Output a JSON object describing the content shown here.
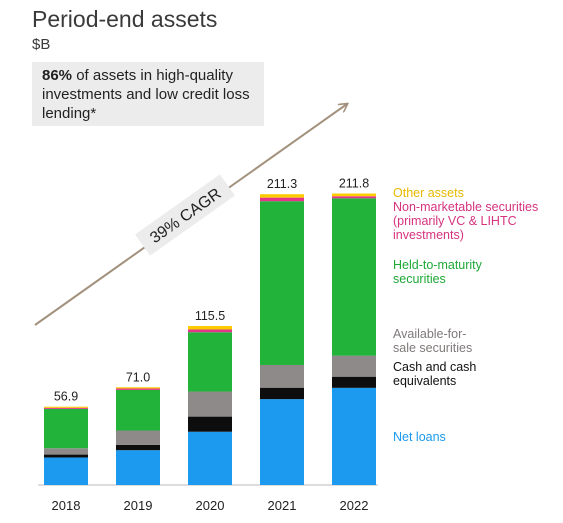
{
  "header": {
    "title": "Period-end assets",
    "unit": "$B"
  },
  "callout": {
    "highlight": "86%",
    "text": " of assets in high-quality investments and low credit loss lending*"
  },
  "cagr_label": "39% CAGR",
  "chart_data": {
    "type": "bar",
    "stacked": true,
    "title": "Period-end assets",
    "ylabel": "$B",
    "ylim": [
      0,
      215
    ],
    "grid": false,
    "categories": [
      "2018",
      "2019",
      "2020",
      "2021",
      "2022"
    ],
    "totals": [
      "56.9",
      "71.0",
      "115.5",
      "211.3",
      "211.8"
    ],
    "series": [
      {
        "name": "Net loans",
        "color": "#1b9af0",
        "values": [
          20.0,
          25.3,
          38.7,
          62.4,
          70.6
        ]
      },
      {
        "name": "Cash and cash equivalents",
        "color": "#0d0d0d",
        "values": [
          2.1,
          3.8,
          11.0,
          8.3,
          8.1
        ]
      },
      {
        "name": "Available-for-sale securities",
        "color": "#8e8a8a",
        "values": [
          4.6,
          10.5,
          18.2,
          16.5,
          15.3
        ]
      },
      {
        "name": "Held-to-maturity securities",
        "color": "#22b33a",
        "values": [
          28.6,
          29.5,
          43.1,
          119.0,
          114.3
        ]
      },
      {
        "name": "Non-marketable securities (primarily VC & LIHTC investments)",
        "color": "#e2358c",
        "values": [
          0.8,
          1.0,
          2.0,
          2.6,
          1.5
        ]
      },
      {
        "name": "Other assets",
        "color": "#ffcc00",
        "values": [
          0.8,
          0.9,
          2.5,
          2.5,
          2.0
        ]
      }
    ],
    "legend_position": "right"
  }
}
